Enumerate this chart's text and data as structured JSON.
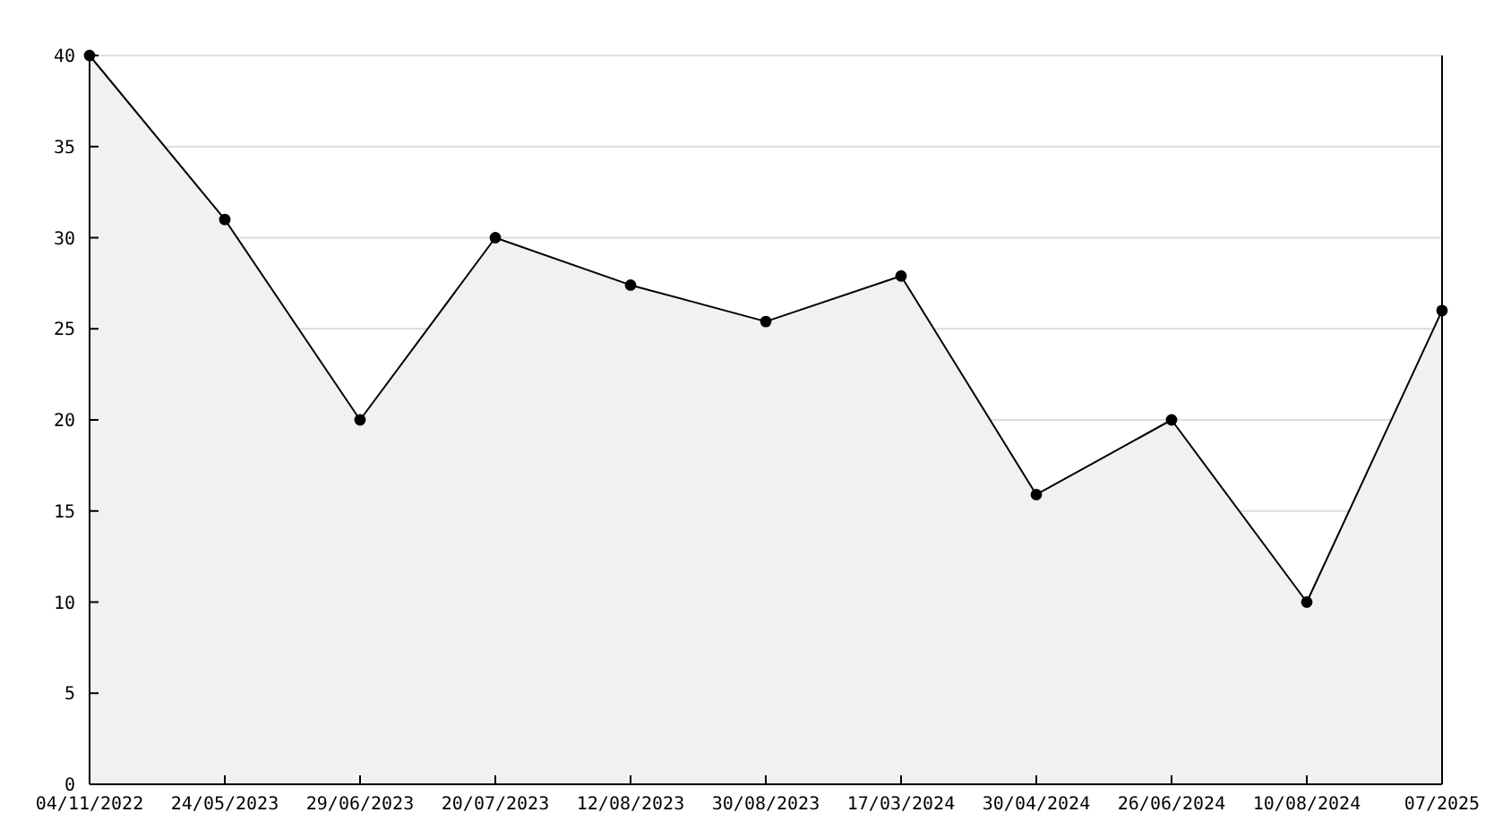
{
  "chart_data": {
    "type": "area",
    "categories": [
      "04/11/2022",
      "24/05/2023",
      "29/06/2023",
      "20/07/2023",
      "12/08/2023",
      "30/08/2023",
      "17/03/2024",
      "30/04/2024",
      "26/06/2024",
      "10/08/2024",
      "07/2025"
    ],
    "series": [
      {
        "color": "#000000",
        "values": [
          40,
          31,
          20,
          30,
          27.4,
          25.4,
          27.9,
          15.9,
          20,
          10,
          26
        ]
      }
    ],
    "ylim": [
      0,
      40
    ],
    "yticks": [
      0,
      5,
      10,
      15,
      20,
      25,
      30,
      35,
      40
    ],
    "grid": "y",
    "marker": "circle",
    "line_style": "solid"
  }
}
